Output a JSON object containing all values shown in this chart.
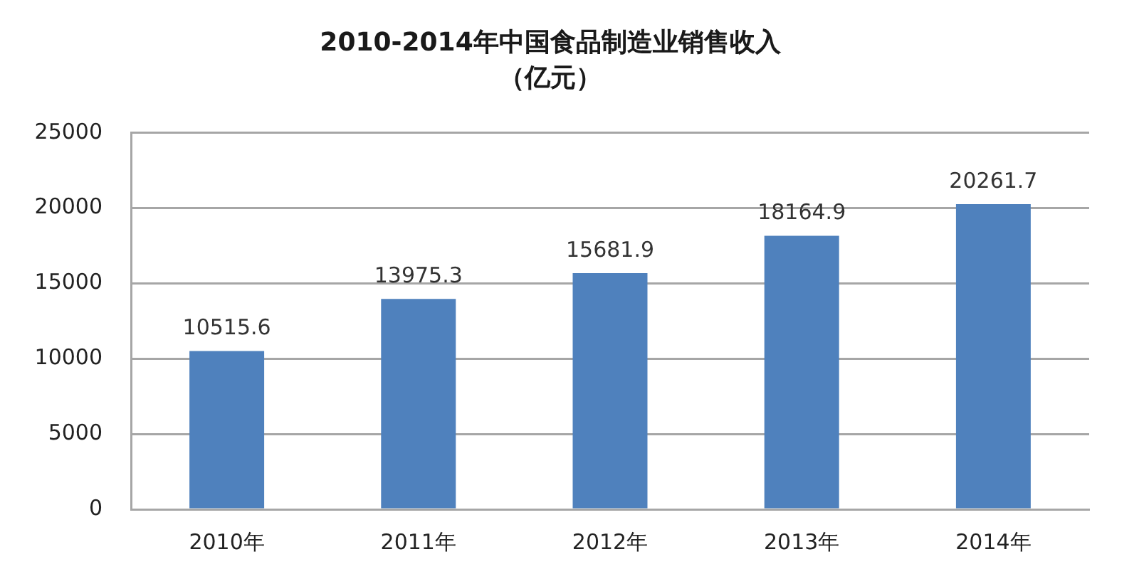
{
  "chart_data": {
    "type": "bar",
    "title": "2010-2014年中国食品制造业销售收入",
    "subtitle": "（亿元）",
    "categories": [
      "2010年",
      "2011年",
      "2012年",
      "2013年",
      "2014年"
    ],
    "values": [
      10515.6,
      13975.3,
      15681.9,
      18164.9,
      20261.7
    ],
    "color": "#4f81bd",
    "ylim": [
      0,
      25000
    ],
    "yticks": [
      0,
      5000,
      10000,
      15000,
      20000,
      25000
    ],
    "grid": "y",
    "data_labels": true
  }
}
